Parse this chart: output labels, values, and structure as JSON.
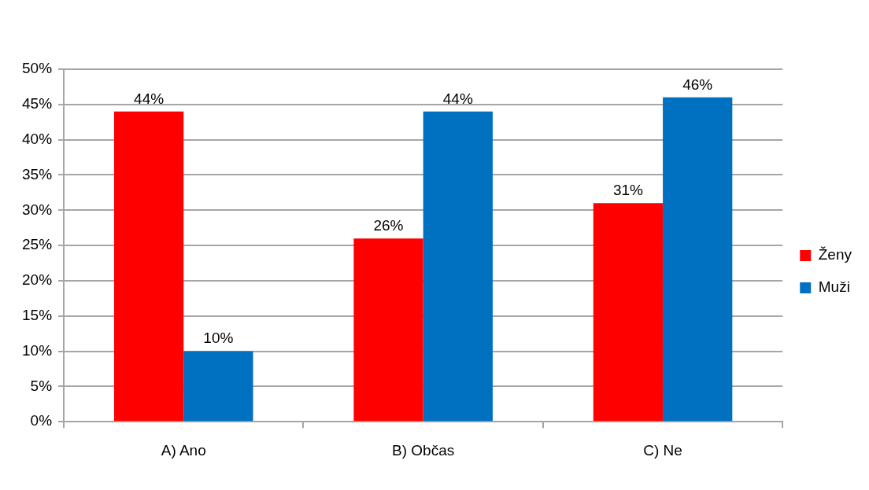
{
  "chart_data": {
    "type": "bar",
    "categories": [
      "A) Ano",
      "B) Občas",
      "C) Ne"
    ],
    "series": [
      {
        "name": "Ženy",
        "color": "#ff0000",
        "values": [
          44,
          26,
          31
        ],
        "value_labels": [
          "44%",
          "26%",
          "31%"
        ]
      },
      {
        "name": "Muži",
        "color": "#0070c0",
        "values": [
          10,
          44,
          46
        ],
        "value_labels": [
          "10%",
          "44%",
          "46%"
        ]
      }
    ],
    "ylim": [
      0,
      50
    ],
    "yticks": [
      {
        "value": 0,
        "label": "0%"
      },
      {
        "value": 5,
        "label": "5%"
      },
      {
        "value": 10,
        "label": "10%"
      },
      {
        "value": 15,
        "label": "15%"
      },
      {
        "value": 20,
        "label": "20%"
      },
      {
        "value": 25,
        "label": "25%"
      },
      {
        "value": 30,
        "label": "30%"
      },
      {
        "value": 35,
        "label": "35%"
      },
      {
        "value": 40,
        "label": "40%"
      },
      {
        "value": 45,
        "label": "45%"
      },
      {
        "value": 50,
        "label": "50%"
      }
    ],
    "grid": "y",
    "legend": "right"
  }
}
